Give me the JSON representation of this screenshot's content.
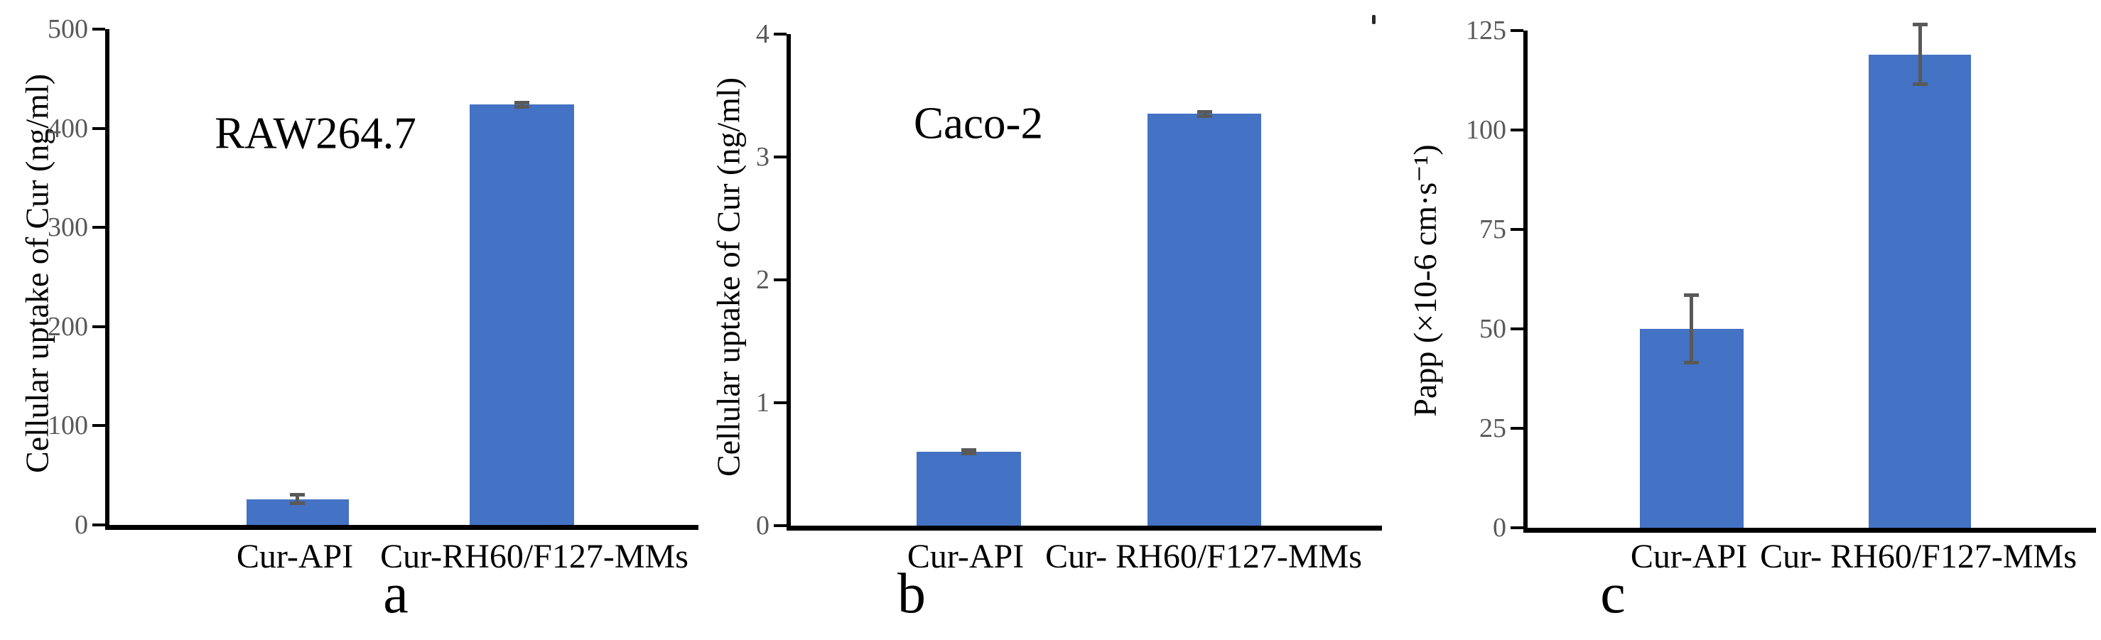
{
  "colors": {
    "bar": "#4472c4",
    "error_bar": "#595959",
    "axis": "#000000",
    "tick_label": "#595959"
  },
  "chart_data": [
    {
      "type": "bar",
      "panel_label": "a",
      "annotation": "RAW264.7",
      "ylabel": "Cellular uptake of Cur (ng/ml)",
      "xlabel": "",
      "categories": [
        "Cur-API",
        "Cur-RH60/F127-MMs"
      ],
      "values": [
        26,
        424
      ],
      "errors": [
        6,
        4
      ],
      "yticks": [
        0,
        100,
        200,
        300,
        400,
        500
      ],
      "ylim": [
        0,
        500
      ],
      "legend": "none",
      "grid": false
    },
    {
      "type": "bar",
      "panel_label": "b",
      "annotation": "Caco-2",
      "ylabel": "Cellular uptake of Cur (ng/ml)",
      "xlabel": "",
      "categories": [
        "Cur-API",
        "Cur- RH60/F127-MMs"
      ],
      "values": [
        0.6,
        3.35
      ],
      "errors": [
        0.03,
        0.03
      ],
      "yticks": [
        0,
        1,
        2,
        3,
        4
      ],
      "ylim": [
        0,
        4
      ],
      "legend": "none",
      "grid": false
    },
    {
      "type": "bar",
      "panel_label": "c",
      "annotation": "",
      "ylabel": "Papp (×10-6 cm·s⁻¹)",
      "xlabel": "",
      "categories": [
        "Cur-API",
        "Cur- RH60/F127-MMs"
      ],
      "values": [
        50,
        119
      ],
      "errors": [
        9,
        8
      ],
      "yticks": [
        0,
        25,
        50,
        75,
        100,
        125
      ],
      "ylim": [
        0,
        125
      ],
      "legend": "none",
      "grid": false
    }
  ]
}
